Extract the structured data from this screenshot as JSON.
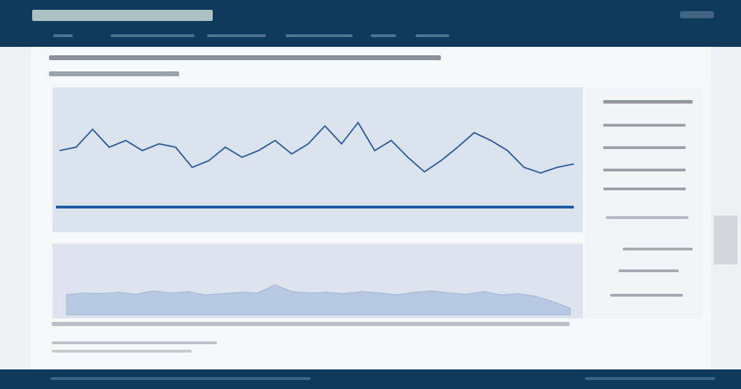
{
  "chart_data": [
    {
      "type": "line",
      "color": "#2f5f9e",
      "ylim": [
        0,
        100
      ],
      "values": [
        53,
        56,
        72,
        56,
        62,
        53,
        59,
        56,
        38,
        44,
        56,
        47,
        53,
        62,
        50,
        59,
        75,
        59,
        78,
        53,
        62,
        47,
        34,
        44,
        56,
        69,
        62,
        53,
        38,
        33,
        38,
        41
      ]
    },
    {
      "type": "area",
      "color": "#b8c9e3",
      "ylim": [
        0,
        100
      ],
      "values": [
        30,
        33,
        32,
        34,
        31,
        36,
        33,
        35,
        30,
        32,
        34,
        33,
        45,
        35,
        33,
        34,
        32,
        35,
        33,
        30,
        34,
        36,
        33,
        31,
        35,
        30,
        32,
        28,
        20,
        10
      ]
    }
  ]
}
